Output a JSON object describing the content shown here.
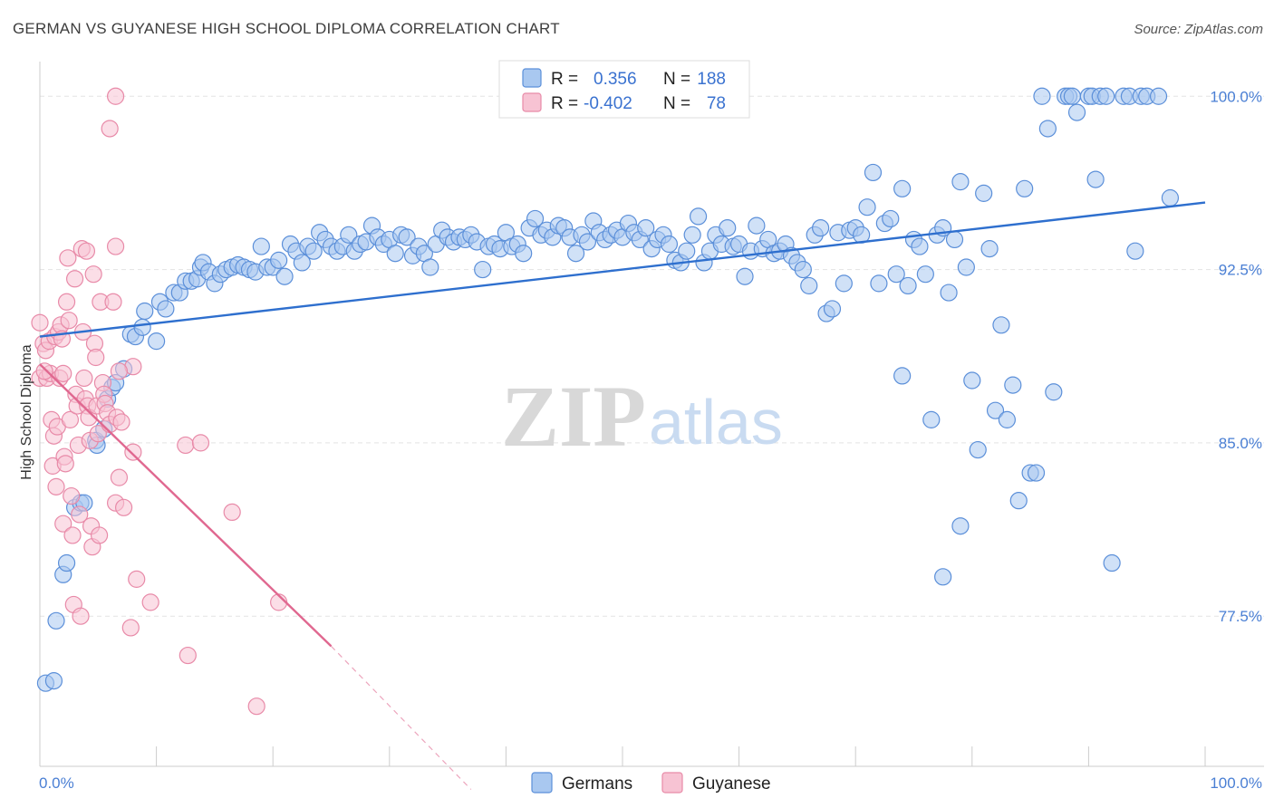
{
  "title": "GERMAN VS GUYANESE HIGH SCHOOL DIPLOMA CORRELATION CHART",
  "source": "Source: ZipAtlas.com",
  "watermark": {
    "zip": "ZIP",
    "atlas": "atlas"
  },
  "colors": {
    "germans_fill": "#a9c8f0",
    "germans_stroke": "#5b8fd9",
    "germans_line": "#2e6fce",
    "guyanese_fill": "#f7c3d3",
    "guyanese_stroke": "#e88aa8",
    "guyanese_line": "#e06890",
    "tick_label": "#4a7fd4",
    "grid": "#e3e3e3"
  },
  "legend": {
    "rows": [
      {
        "r_label": "R =",
        "r_value": "0.356",
        "n_label": "N =",
        "n_value": "188",
        "series": "germans"
      },
      {
        "r_label": "R =",
        "r_value": "-0.402",
        "n_label": "N =",
        "n_value": "78",
        "series": "guyanese"
      }
    ]
  },
  "bottom_legend": [
    {
      "label": "Germans",
      "series": "germans"
    },
    {
      "label": "Guyanese",
      "series": "guyanese"
    }
  ],
  "chart_data": {
    "type": "scatter",
    "title": "GERMAN VS GUYANESE HIGH SCHOOL DIPLOMA CORRELATION CHART",
    "xlabel": "",
    "ylabel": "High School Diploma",
    "xlim": [
      0,
      100
    ],
    "ylim": [
      71.0,
      101.5
    ],
    "x_tick_labels": [
      {
        "value": 0,
        "label": "0.0%"
      },
      {
        "value": 100,
        "label": "100.0%"
      }
    ],
    "y_ticks": [
      {
        "value": 100.0,
        "label": "100.0%"
      },
      {
        "value": 92.5,
        "label": "92.5%"
      },
      {
        "value": 85.0,
        "label": "85.0%"
      },
      {
        "value": 77.5,
        "label": "77.5%"
      }
    ],
    "grid": true,
    "legend_position": "top-center",
    "series": [
      {
        "name": "Germans",
        "r": 0.356,
        "n": 188,
        "trend": {
          "x": [
            0,
            100
          ],
          "y": [
            89.6,
            95.4
          ]
        },
        "points": [
          [
            0.5,
            74.6
          ],
          [
            1.2,
            74.7
          ],
          [
            1.4,
            77.3
          ],
          [
            2.0,
            79.3
          ],
          [
            2.3,
            79.8
          ],
          [
            3.0,
            82.2
          ],
          [
            3.5,
            82.4
          ],
          [
            3.8,
            82.4
          ],
          [
            4.8,
            85.1
          ],
          [
            4.9,
            84.9
          ],
          [
            5.5,
            85.6
          ],
          [
            5.8,
            86.9
          ],
          [
            6.2,
            87.4
          ],
          [
            6.5,
            87.6
          ],
          [
            7.2,
            88.2
          ],
          [
            7.8,
            89.7
          ],
          [
            8.2,
            89.6
          ],
          [
            8.8,
            90.0
          ],
          [
            9.0,
            90.7
          ],
          [
            10.0,
            89.4
          ],
          [
            10.3,
            91.1
          ],
          [
            10.8,
            90.8
          ],
          [
            11.5,
            91.5
          ],
          [
            12.0,
            91.5
          ],
          [
            12.5,
            92.0
          ],
          [
            13.0,
            92.0
          ],
          [
            13.5,
            92.1
          ],
          [
            13.8,
            92.6
          ],
          [
            14.0,
            92.8
          ],
          [
            14.5,
            92.4
          ],
          [
            15.0,
            91.9
          ],
          [
            15.5,
            92.3
          ],
          [
            16.0,
            92.5
          ],
          [
            16.5,
            92.6
          ],
          [
            17.0,
            92.7
          ],
          [
            17.5,
            92.6
          ],
          [
            18.0,
            92.5
          ],
          [
            18.5,
            92.4
          ],
          [
            19.0,
            93.5
          ],
          [
            19.5,
            92.6
          ],
          [
            20.0,
            92.6
          ],
          [
            20.5,
            92.9
          ],
          [
            21.0,
            92.2
          ],
          [
            21.5,
            93.6
          ],
          [
            22.0,
            93.3
          ],
          [
            22.5,
            92.8
          ],
          [
            23.0,
            93.5
          ],
          [
            23.5,
            93.3
          ],
          [
            24.0,
            94.1
          ],
          [
            24.5,
            93.8
          ],
          [
            25.0,
            93.5
          ],
          [
            25.5,
            93.3
          ],
          [
            26.0,
            93.5
          ],
          [
            26.5,
            94.0
          ],
          [
            27.0,
            93.3
          ],
          [
            27.5,
            93.6
          ],
          [
            28.0,
            93.7
          ],
          [
            28.5,
            94.4
          ],
          [
            29.0,
            93.9
          ],
          [
            29.5,
            93.6
          ],
          [
            30.0,
            93.8
          ],
          [
            30.5,
            93.2
          ],
          [
            31.0,
            94.0
          ],
          [
            31.5,
            93.9
          ],
          [
            32.0,
            93.1
          ],
          [
            32.5,
            93.5
          ],
          [
            33.0,
            93.2
          ],
          [
            33.5,
            92.6
          ],
          [
            34.0,
            93.6
          ],
          [
            34.5,
            94.2
          ],
          [
            35.0,
            93.9
          ],
          [
            35.5,
            93.7
          ],
          [
            36.0,
            93.9
          ],
          [
            36.5,
            93.8
          ],
          [
            37.0,
            94.0
          ],
          [
            37.5,
            93.7
          ],
          [
            38.0,
            92.5
          ],
          [
            38.5,
            93.5
          ],
          [
            39.0,
            93.6
          ],
          [
            39.5,
            93.4
          ],
          [
            40.0,
            94.1
          ],
          [
            40.5,
            93.5
          ],
          [
            41.0,
            93.6
          ],
          [
            41.5,
            93.2
          ],
          [
            42.0,
            94.3
          ],
          [
            42.5,
            94.7
          ],
          [
            43.0,
            94.0
          ],
          [
            43.5,
            94.2
          ],
          [
            44.0,
            93.9
          ],
          [
            44.5,
            94.4
          ],
          [
            45.0,
            94.3
          ],
          [
            45.5,
            93.9
          ],
          [
            46.0,
            93.2
          ],
          [
            46.5,
            94.0
          ],
          [
            47.0,
            93.7
          ],
          [
            47.5,
            94.6
          ],
          [
            48.0,
            94.1
          ],
          [
            48.5,
            93.8
          ],
          [
            49.0,
            94.0
          ],
          [
            49.5,
            94.2
          ],
          [
            50.0,
            93.9
          ],
          [
            50.5,
            94.5
          ],
          [
            51.0,
            94.1
          ],
          [
            51.5,
            93.8
          ],
          [
            52.0,
            94.3
          ],
          [
            52.5,
            93.4
          ],
          [
            53.0,
            93.8
          ],
          [
            53.5,
            94.0
          ],
          [
            54.0,
            93.6
          ],
          [
            54.5,
            92.9
          ],
          [
            55.0,
            92.8
          ],
          [
            55.5,
            93.3
          ],
          [
            56.0,
            94.0
          ],
          [
            56.5,
            94.8
          ],
          [
            57.0,
            92.8
          ],
          [
            57.5,
            93.3
          ],
          [
            58.0,
            94.0
          ],
          [
            58.5,
            93.6
          ],
          [
            59.0,
            94.3
          ],
          [
            59.5,
            93.5
          ],
          [
            60.0,
            93.6
          ],
          [
            60.5,
            92.2
          ],
          [
            61.0,
            93.3
          ],
          [
            61.5,
            94.4
          ],
          [
            62.0,
            93.4
          ],
          [
            62.5,
            93.8
          ],
          [
            63.0,
            93.2
          ],
          [
            63.5,
            93.3
          ],
          [
            64.0,
            93.6
          ],
          [
            64.5,
            93.1
          ],
          [
            65.0,
            92.8
          ],
          [
            65.5,
            92.5
          ],
          [
            66.0,
            91.8
          ],
          [
            66.5,
            94.0
          ],
          [
            67.0,
            94.3
          ],
          [
            67.5,
            90.6
          ],
          [
            68.0,
            90.8
          ],
          [
            68.5,
            94.1
          ],
          [
            69.0,
            91.9
          ],
          [
            69.5,
            94.2
          ],
          [
            70.0,
            94.3
          ],
          [
            70.5,
            94.0
          ],
          [
            71.0,
            95.2
          ],
          [
            71.5,
            96.7
          ],
          [
            72.0,
            91.9
          ],
          [
            72.5,
            94.5
          ],
          [
            73.0,
            94.7
          ],
          [
            73.5,
            92.3
          ],
          [
            74.0,
            96.0
          ],
          [
            74.5,
            91.8
          ],
          [
            75.0,
            93.8
          ],
          [
            75.5,
            93.5
          ],
          [
            76.0,
            92.3
          ],
          [
            76.5,
            86.0
          ],
          [
            77.0,
            94.0
          ],
          [
            77.5,
            94.3
          ],
          [
            78.0,
            91.5
          ],
          [
            78.5,
            93.8
          ],
          [
            79.0,
            96.3
          ],
          [
            79.5,
            92.6
          ],
          [
            80.0,
            87.7
          ],
          [
            80.5,
            84.7
          ],
          [
            81.0,
            95.8
          ],
          [
            81.5,
            93.4
          ],
          [
            82.0,
            86.4
          ],
          [
            82.5,
            90.1
          ],
          [
            83.0,
            86.0
          ],
          [
            83.5,
            87.5
          ],
          [
            84.0,
            82.5
          ],
          [
            84.5,
            96.0
          ],
          [
            85.0,
            83.7
          ],
          [
            85.5,
            83.7
          ],
          [
            86.0,
            100.0
          ],
          [
            86.5,
            98.6
          ],
          [
            87.0,
            87.2
          ],
          [
            88.0,
            100.0
          ],
          [
            88.3,
            100.0
          ],
          [
            88.6,
            100.0
          ],
          [
            89.0,
            99.3
          ],
          [
            90.0,
            100.0
          ],
          [
            90.3,
            100.0
          ],
          [
            90.6,
            96.4
          ],
          [
            91.0,
            100.0
          ],
          [
            91.5,
            100.0
          ],
          [
            92.0,
            79.8
          ],
          [
            93.0,
            100.0
          ],
          [
            93.5,
            100.0
          ],
          [
            94.0,
            93.3
          ],
          [
            94.5,
            100.0
          ],
          [
            95.0,
            100.0
          ],
          [
            96.0,
            100.0
          ],
          [
            97.0,
            95.6
          ],
          [
            74.0,
            87.9
          ],
          [
            79.0,
            81.4
          ],
          [
            77.5,
            79.2
          ]
        ]
      },
      {
        "name": "Guyanese",
        "r": -0.402,
        "n": 78,
        "trend": {
          "x": [
            0,
            25.0
          ],
          "y": [
            88.4,
            76.2
          ]
        },
        "trend_extension": {
          "x": [
            25.0,
            37.0
          ],
          "y": [
            76.2,
            70.0
          ]
        },
        "points": [
          [
            0.0,
            90.2
          ],
          [
            0.0,
            87.8
          ],
          [
            0.3,
            89.3
          ],
          [
            0.5,
            89.0
          ],
          [
            0.6,
            87.8
          ],
          [
            0.8,
            89.4
          ],
          [
            0.9,
            88.0
          ],
          [
            1.0,
            86.0
          ],
          [
            1.1,
            84.0
          ],
          [
            1.2,
            85.3
          ],
          [
            1.3,
            89.6
          ],
          [
            1.4,
            83.1
          ],
          [
            1.5,
            85.7
          ],
          [
            1.6,
            89.8
          ],
          [
            1.7,
            87.8
          ],
          [
            1.8,
            90.1
          ],
          [
            1.9,
            89.5
          ],
          [
            2.0,
            81.5
          ],
          [
            2.1,
            84.4
          ],
          [
            2.2,
            84.1
          ],
          [
            2.3,
            91.1
          ],
          [
            2.4,
            93.0
          ],
          [
            2.5,
            90.3
          ],
          [
            2.6,
            86.0
          ],
          [
            2.7,
            82.7
          ],
          [
            2.8,
            81.0
          ],
          [
            2.9,
            78.0
          ],
          [
            3.0,
            92.1
          ],
          [
            3.1,
            87.1
          ],
          [
            3.2,
            86.6
          ],
          [
            3.3,
            84.9
          ],
          [
            3.4,
            81.9
          ],
          [
            3.5,
            77.5
          ],
          [
            3.6,
            93.4
          ],
          [
            3.7,
            89.8
          ],
          [
            3.8,
            87.8
          ],
          [
            3.9,
            86.9
          ],
          [
            4.0,
            93.3
          ],
          [
            4.1,
            86.6
          ],
          [
            4.2,
            86.1
          ],
          [
            4.3,
            85.1
          ],
          [
            4.4,
            81.4
          ],
          [
            4.5,
            80.5
          ],
          [
            4.6,
            92.3
          ],
          [
            4.7,
            89.3
          ],
          [
            4.8,
            88.7
          ],
          [
            4.9,
            86.6
          ],
          [
            5.0,
            85.4
          ],
          [
            5.1,
            81.0
          ],
          [
            5.2,
            91.1
          ],
          [
            5.4,
            87.6
          ],
          [
            5.5,
            87.1
          ],
          [
            5.6,
            86.7
          ],
          [
            5.8,
            86.3
          ],
          [
            6.0,
            85.8
          ],
          [
            6.0,
            98.6
          ],
          [
            6.3,
            91.1
          ],
          [
            6.5,
            82.4
          ],
          [
            6.6,
            86.1
          ],
          [
            6.8,
            83.5
          ],
          [
            6.5,
            100.0
          ],
          [
            6.5,
            93.5
          ],
          [
            7.0,
            85.9
          ],
          [
            7.2,
            82.2
          ],
          [
            7.8,
            77.0
          ],
          [
            8.0,
            88.3
          ],
          [
            8.0,
            84.6
          ],
          [
            8.3,
            79.1
          ],
          [
            9.5,
            78.1
          ],
          [
            12.5,
            84.9
          ],
          [
            12.7,
            75.8
          ],
          [
            13.8,
            85.0
          ],
          [
            16.5,
            82.0
          ],
          [
            18.6,
            73.6
          ],
          [
            20.5,
            78.1
          ],
          [
            6.8,
            88.1
          ],
          [
            2.0,
            88.0
          ],
          [
            0.4,
            88.1
          ]
        ]
      }
    ]
  }
}
